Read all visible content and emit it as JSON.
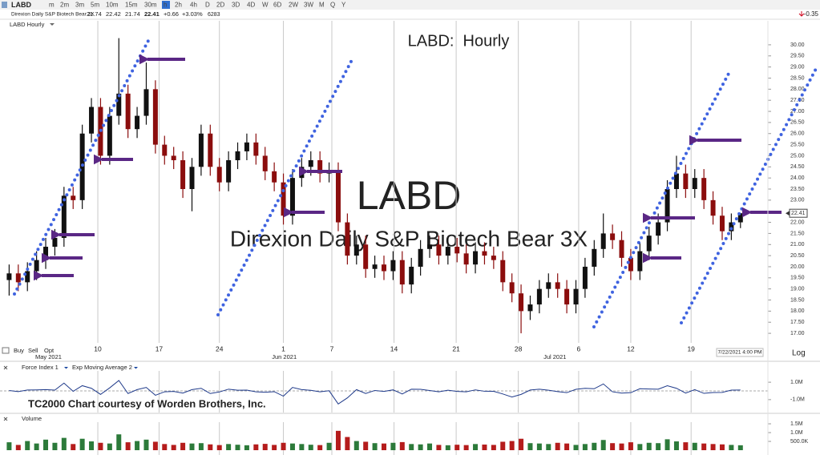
{
  "toolbar": {
    "symbol": "LABD",
    "intervals": [
      "m",
      "2m",
      "3m",
      "5m",
      "10m",
      "15m",
      "30m",
      "h",
      "2h",
      "4h",
      "D",
      "2D",
      "3D",
      "4D",
      "W",
      "6D",
      "2W",
      "3W",
      "M",
      "Q",
      "Y"
    ],
    "active_index": 7,
    "right_value": "-0.35"
  },
  "header": {
    "quote": {
      "name": "Direxion Daily S&P Biotech Bear 3X",
      "open": "21.74",
      "high": "22.42",
      "low": "21.74",
      "last": "22.41",
      "change": "+0.66",
      "change_pct": "+3.03%",
      "volume": "6283"
    },
    "trade_buttons": [
      "Buy",
      "Sell",
      "Opt"
    ]
  },
  "chart_data": [
    {
      "type": "candlestick",
      "title": "LABD:  Hourly",
      "panel_label": "LABD Hourly",
      "watermark": "LABD",
      "last_time": "7/22/2021 4:00 PM",
      "scale_label": "Log",
      "up_color": "#111111",
      "down_color": "#8b0d0d",
      "x": [
        0,
        1,
        2,
        3,
        4,
        5,
        6,
        7,
        8,
        9,
        10,
        11,
        12,
        13,
        14,
        15,
        16,
        17,
        18,
        19,
        20,
        21,
        22,
        23,
        24,
        25,
        26,
        27,
        28,
        29,
        30,
        31,
        32,
        33,
        34,
        35,
        36,
        37,
        38,
        39,
        40,
        41,
        42,
        43,
        44,
        45,
        46,
        47,
        48,
        49,
        50,
        51,
        52,
        53,
        54,
        55,
        56,
        57,
        58,
        59,
        60,
        61,
        62,
        63,
        64,
        65,
        66,
        67,
        68,
        69,
        70,
        71,
        72,
        73,
        74,
        75,
        76,
        77,
        78,
        79,
        80
      ],
      "open": [
        19.4,
        19.7,
        19.3,
        19.8,
        20.3,
        20.9,
        21.3,
        23.2,
        23.0,
        26.0,
        27.2,
        25.0,
        26.8,
        27.8,
        26.2,
        26.8,
        28.0,
        25.5,
        25.0,
        24.8,
        23.5,
        24.5,
        26.0,
        24.5,
        23.8,
        24.8,
        25.2,
        25.6,
        25.0,
        24.3,
        23.8,
        22.3,
        24.0,
        24.5,
        24.8,
        24.2,
        24.3,
        22.0,
        20.5,
        21.0,
        19.9,
        20.1,
        19.8,
        20.3,
        19.2,
        20.0,
        20.8,
        21.0,
        20.5,
        20.9,
        20.6,
        20.1,
        20.7,
        20.5,
        20.3,
        19.3,
        18.8,
        18.0,
        18.3,
        19.0,
        19.3,
        19.0,
        18.3,
        19.0,
        20.0,
        20.8,
        21.5,
        21.2,
        20.4,
        19.8,
        20.7,
        21.4,
        22.0,
        23.5,
        24.2,
        23.5,
        24.0,
        23.0,
        22.3,
        21.6,
        22.0
      ],
      "high": [
        20.1,
        20.1,
        20.2,
        20.7,
        21.3,
        21.7,
        23.6,
        23.6,
        26.4,
        27.6,
        27.6,
        27.2,
        30.3,
        28.2,
        27.2,
        29.2,
        28.4,
        25.9,
        25.4,
        25.2,
        24.9,
        26.4,
        26.4,
        24.9,
        25.2,
        25.6,
        26.0,
        26.0,
        25.4,
        24.7,
        24.2,
        24.4,
        24.9,
        25.2,
        25.2,
        24.7,
        24.7,
        22.4,
        21.4,
        21.4,
        20.5,
        20.5,
        20.7,
        20.7,
        20.4,
        21.2,
        21.4,
        21.4,
        21.3,
        21.3,
        21.0,
        21.1,
        21.1,
        20.9,
        20.7,
        19.7,
        19.2,
        18.7,
        19.4,
        19.7,
        19.7,
        19.4,
        19.4,
        20.4,
        21.2,
        22.4,
        21.9,
        21.6,
        20.8,
        21.1,
        21.8,
        22.4,
        23.9,
        25.0,
        24.6,
        24.4,
        24.4,
        23.4,
        22.7,
        22.4,
        22.42
      ],
      "low": [
        18.7,
        18.9,
        18.9,
        19.4,
        19.9,
        20.5,
        20.9,
        22.6,
        22.6,
        25.6,
        24.6,
        24.6,
        26.4,
        25.8,
        25.8,
        26.4,
        25.1,
        24.6,
        24.4,
        23.1,
        22.5,
        24.1,
        24.1,
        23.4,
        23.4,
        24.4,
        24.8,
        24.6,
        23.9,
        23.4,
        21.9,
        21.9,
        23.6,
        24.1,
        23.8,
        23.8,
        21.6,
        20.1,
        20.1,
        19.5,
        19.5,
        19.4,
        19.4,
        18.8,
        18.8,
        19.6,
        20.4,
        20.1,
        20.1,
        20.2,
        19.7,
        19.7,
        20.1,
        19.9,
        18.9,
        18.4,
        17.0,
        17.6,
        17.9,
        18.6,
        18.6,
        17.9,
        17.9,
        18.6,
        19.6,
        20.4,
        20.8,
        20.0,
        19.4,
        19.4,
        20.3,
        21.0,
        21.6,
        23.1,
        23.1,
        23.1,
        22.6,
        21.9,
        21.2,
        21.2,
        21.74
      ],
      "close": [
        19.7,
        19.3,
        19.8,
        20.3,
        20.9,
        21.3,
        23.2,
        23.0,
        26.0,
        27.2,
        25.0,
        26.8,
        27.8,
        26.2,
        26.8,
        28.0,
        25.5,
        25.0,
        24.8,
        23.5,
        24.5,
        26.0,
        24.5,
        23.8,
        24.8,
        25.2,
        25.6,
        25.0,
        24.3,
        23.8,
        22.3,
        24.0,
        24.5,
        24.8,
        24.2,
        24.3,
        22.0,
        20.5,
        21.0,
        19.9,
        20.1,
        19.8,
        20.3,
        19.2,
        20.0,
        20.8,
        21.0,
        20.5,
        20.9,
        20.6,
        20.1,
        20.7,
        20.5,
        20.3,
        19.3,
        18.8,
        18.0,
        18.3,
        19.0,
        19.3,
        19.0,
        18.3,
        19.0,
        20.0,
        20.8,
        21.5,
        21.2,
        20.4,
        19.8,
        20.7,
        21.4,
        22.0,
        23.5,
        24.2,
        23.5,
        24.0,
        23.0,
        22.3,
        21.6,
        22.0,
        22.41
      ],
      "xlim": [
        -1,
        83
      ],
      "ylim": [
        16.57,
        31.08
      ],
      "xticks": [
        {
          "value": 9.7,
          "label": "10"
        },
        {
          "value": 16.4,
          "label": "17"
        },
        {
          "value": 23.0,
          "label": "24"
        },
        {
          "value": 30.0,
          "label": "1"
        },
        {
          "value": 35.3,
          "label": "7"
        },
        {
          "value": 42.1,
          "label": "14"
        },
        {
          "value": 48.9,
          "label": "21"
        },
        {
          "value": 55.7,
          "label": "28"
        },
        {
          "value": 62.3,
          "label": "6"
        },
        {
          "value": 68.0,
          "label": "12"
        },
        {
          "value": 74.6,
          "label": "19"
        }
      ],
      "month_labels": [
        {
          "value": 4.3,
          "label": "May 2021"
        },
        {
          "value": 30.1,
          "label": "Jun 2021"
        },
        {
          "value": 59.7,
          "label": "Jul 2021"
        }
      ],
      "yticks": [
        {
          "value": 17,
          "label": "17.00"
        },
        {
          "value": 17.5,
          "label": "17.50"
        },
        {
          "value": 18,
          "label": "18.00"
        },
        {
          "value": 18.5,
          "label": "18.50"
        },
        {
          "value": 19,
          "label": "19.00"
        },
        {
          "value": 19.5,
          "label": "19.50"
        },
        {
          "value": 20,
          "label": "20.00"
        },
        {
          "value": 20.5,
          "label": "20.50"
        },
        {
          "value": 21,
          "label": "21.00"
        },
        {
          "value": 21.5,
          "label": "21.50"
        },
        {
          "value": 22,
          "label": "22.00"
        },
        {
          "value": 23,
          "label": "23.00"
        },
        {
          "value": 23.5,
          "label": "23.50"
        },
        {
          "value": 24,
          "label": "24.00"
        },
        {
          "value": 24.5,
          "label": "24.50"
        },
        {
          "value": 25,
          "label": "25.00"
        },
        {
          "value": 25.5,
          "label": "25.50"
        },
        {
          "value": 26,
          "label": "26.00"
        },
        {
          "value": 26.5,
          "label": "26.50"
        },
        {
          "value": 27,
          "label": "27.00"
        },
        {
          "value": 27.5,
          "label": "27.50"
        },
        {
          "value": 28,
          "label": "28.00"
        },
        {
          "value": 28.5,
          "label": "28.50"
        },
        {
          "value": 29,
          "label": "29.00"
        },
        {
          "value": 29.5,
          "label": "29.50"
        },
        {
          "value": 30,
          "label": "30.00"
        }
      ]
    },
    {
      "type": "line",
      "indicator": "Exp Moving Average 2",
      "annotation": "TC2000 Chart courtesy of Worden Brothers, Inc.",
      "series": [
        {
          "name": "Force Index 1",
          "color": "#1f3a8a",
          "values": [
            50000,
            -80000,
            100000,
            120000,
            150000,
            90000,
            900000,
            -50000,
            600000,
            300000,
            -400000,
            350000,
            1200000,
            -300000,
            150000,
            400000,
            -500000,
            -100000,
            -60000,
            -250000,
            150000,
            300000,
            -300000,
            -120000,
            200000,
            80000,
            90000,
            -100000,
            -150000,
            -90000,
            -600000,
            400000,
            150000,
            70000,
            -100000,
            20000,
            -1500000,
            -800000,
            150000,
            -300000,
            50000,
            -60000,
            120000,
            -350000,
            200000,
            180000,
            50000,
            -100000,
            80000,
            -60000,
            -100000,
            120000,
            -40000,
            -50000,
            -350000,
            -700000,
            -400000,
            100000,
            200000,
            80000,
            -80000,
            -200000,
            180000,
            300000,
            250000,
            800000,
            -100000,
            -250000,
            -200000,
            250000,
            220000,
            200000,
            600000,
            300000,
            -250000,
            150000,
            -280000,
            -180000,
            -170000,
            90000,
            100000
          ]
        }
      ],
      "ylim": [
        -2300000,
        2300000
      ],
      "yticks": [
        {
          "value": 1000000,
          "label": "1.0M"
        },
        {
          "value": -1000000,
          "label": "-1.0M"
        }
      ]
    },
    {
      "type": "bar",
      "title": "Volume",
      "values": [
        450000,
        300000,
        520000,
        380000,
        600000,
        420000,
        700000,
        350000,
        650000,
        500000,
        420000,
        380000,
        900000,
        450000,
        520000,
        600000,
        480000,
        350000,
        300000,
        420000,
        380000,
        400000,
        330000,
        290000,
        350000,
        310000,
        280000,
        330000,
        360000,
        300000,
        420000,
        380000,
        350000,
        310000,
        290000,
        420000,
        1100000,
        750000,
        520000,
        480000,
        400000,
        380000,
        420000,
        460000,
        350000,
        330000,
        380000,
        300000,
        280000,
        310000,
        290000,
        350000,
        320000,
        300000,
        480000,
        520000,
        650000,
        400000,
        380000,
        350000,
        420000,
        380000,
        300000,
        350000,
        420000,
        580000,
        400000,
        380000,
        450000,
        350000,
        420000,
        400000,
        620000,
        500000,
        450000,
        420000,
        380000,
        350000,
        330000,
        300000,
        280000
      ],
      "ylim": [
        0,
        1730000
      ],
      "yticks": [
        {
          "value": 500000,
          "label": "500.0K"
        },
        {
          "value": 1000000,
          "label": "1.0M"
        },
        {
          "value": 1500000,
          "label": "1.5M"
        }
      ]
    }
  ]
}
